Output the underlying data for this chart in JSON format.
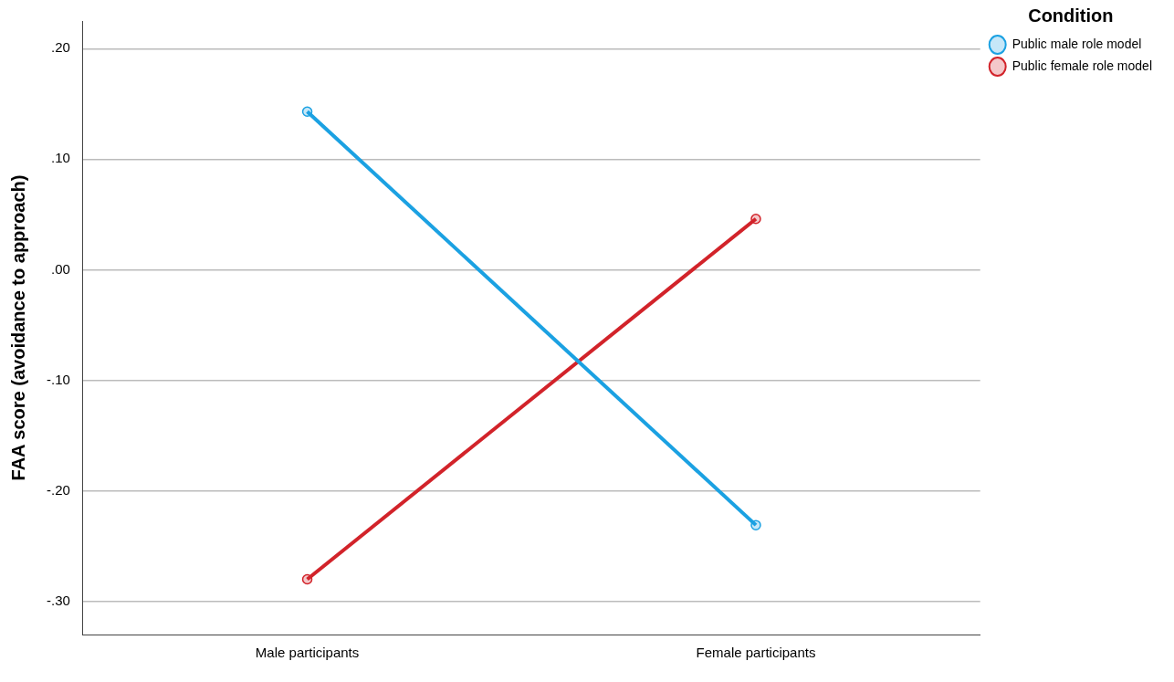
{
  "chart_data": {
    "type": "line",
    "ylabel": "FAA score (avoidance to approach)",
    "legend_title": "Condition",
    "categories": [
      "Male participants",
      "Female participants"
    ],
    "series": [
      {
        "name": "Public male role model",
        "color": "#1ba1e2",
        "values": [
          0.143,
          -0.231
        ]
      },
      {
        "name": "Public female role model",
        "color": "#d2232a",
        "values": [
          -0.28,
          0.046
        ]
      }
    ],
    "ylim": [
      -0.33,
      0.225
    ],
    "yticks": [
      {
        "value": -0.3,
        "label": "-.30"
      },
      {
        "value": -0.2,
        "label": "-.20"
      },
      {
        "value": -0.1,
        "label": "-.10"
      },
      {
        "value": 0,
        "label": ".00"
      },
      {
        "value": 0.1,
        "label": ".10"
      },
      {
        "value": 0.2,
        "label": ".20"
      }
    ],
    "grid": "y",
    "legend": "top right",
    "marker": "circle",
    "line_style": "solid"
  }
}
